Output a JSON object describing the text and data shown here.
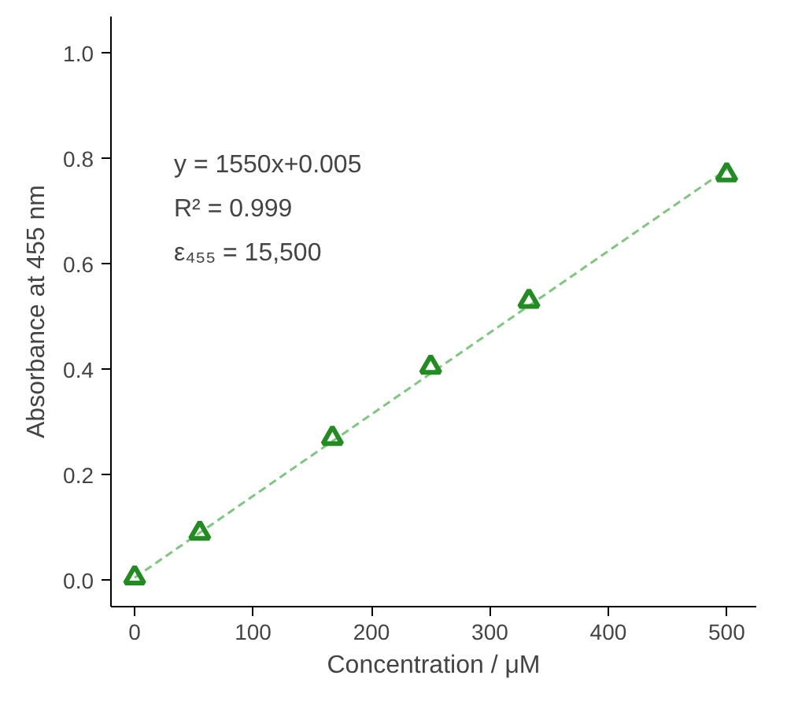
{
  "chart_data": {
    "type": "scatter",
    "xlabel": "Concentration / μM",
    "ylabel": "Absorbance at 455 nm",
    "xlim": [
      -20,
      525
    ],
    "ylim": [
      -0.05,
      1.07
    ],
    "xticks": [
      0,
      100,
      200,
      300,
      400,
      500
    ],
    "yticks": [
      {
        "value": 0,
        "label": "0.0"
      },
      {
        "value": 0.2,
        "label": "0.2"
      },
      {
        "value": 0.4,
        "label": "0.4"
      },
      {
        "value": 0.6,
        "label": "0.6"
      },
      {
        "value": 0.8,
        "label": "0.8"
      },
      {
        "value": 1.0,
        "label": "1.0"
      }
    ],
    "marker": "triangle",
    "grid": false,
    "series": [
      {
        "type": "line",
        "color": "#7fc67f",
        "line_style": "dashed",
        "marker": "none",
        "x": [
          0,
          500
        ],
        "values": [
          0.005,
          0.78
        ]
      },
      {
        "color": "#228b22",
        "x": [
          0,
          55,
          167,
          250,
          333,
          500
        ],
        "values": [
          0.005,
          0.09,
          0.27,
          0.405,
          0.53,
          0.77
        ]
      }
    ],
    "annotations": [
      "y = 1550x+0.005",
      "R² = 0.999",
      "ε₄₅₅ = 15,500"
    ]
  }
}
